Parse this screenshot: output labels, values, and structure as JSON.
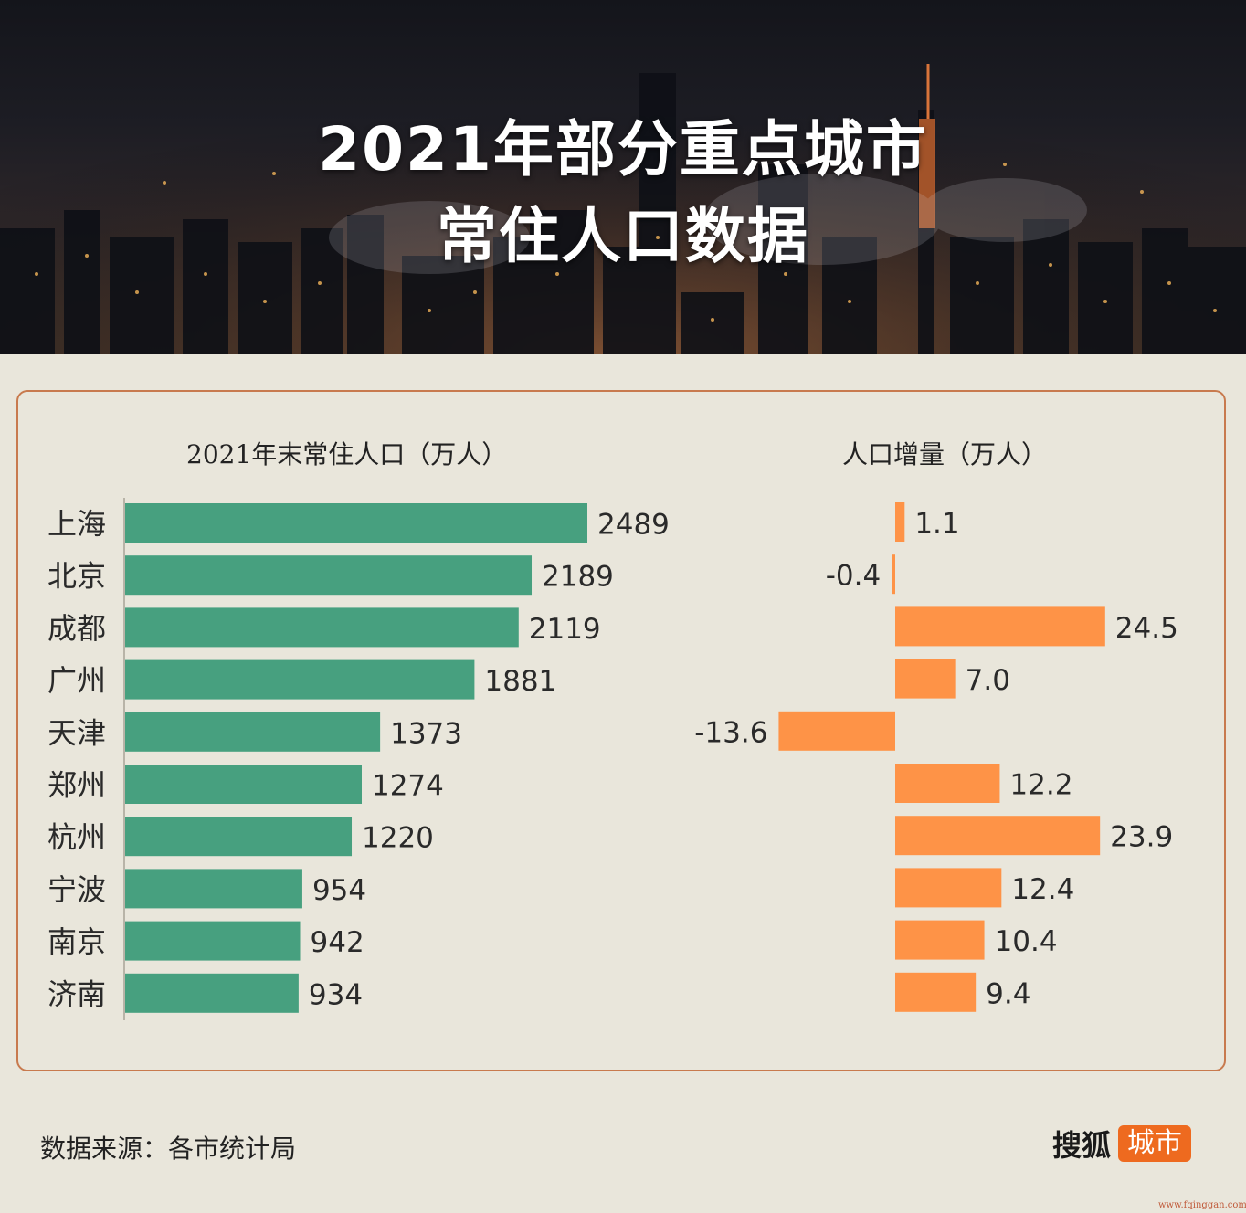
{
  "header": {
    "title_line1": "2021年部分重点城市",
    "title_line2": "常住人口数据"
  },
  "colors": {
    "population_bar": "#47a07f",
    "increase_bar": "#fe9347",
    "panel_border": "#c87a4e",
    "background": "#e9e6db"
  },
  "chart_data": [
    {
      "type": "bar",
      "orientation": "horizontal",
      "title": "2021年末常住人口（万人）",
      "categories": [
        "上海",
        "北京",
        "成都",
        "广州",
        "天津",
        "郑州",
        "杭州",
        "宁波",
        "南京",
        "济南"
      ],
      "values": [
        2489,
        2189,
        2119,
        1881,
        1373,
        1274,
        1220,
        954,
        942,
        934
      ],
      "xlim": [
        0,
        2489
      ]
    },
    {
      "type": "bar",
      "orientation": "horizontal",
      "title": "人口增量（万人）",
      "categories": [
        "上海",
        "北京",
        "成都",
        "广州",
        "天津",
        "郑州",
        "杭州",
        "宁波",
        "南京",
        "济南"
      ],
      "values": [
        1.1,
        -0.4,
        24.5,
        7.0,
        -13.6,
        12.2,
        23.9,
        12.4,
        10.4,
        9.4
      ],
      "value_labels": [
        "1.1",
        "-0.4",
        "24.5",
        "7.0",
        "-13.6",
        "12.2",
        "23.9",
        "12.4",
        "10.4",
        "9.4"
      ],
      "xlim": [
        -13.6,
        24.5
      ]
    }
  ],
  "footer": {
    "source": "数据来源：各市统计局",
    "logo_main": "搜狐",
    "logo_tag": "城市",
    "watermark": "www.fqinggan.com"
  }
}
